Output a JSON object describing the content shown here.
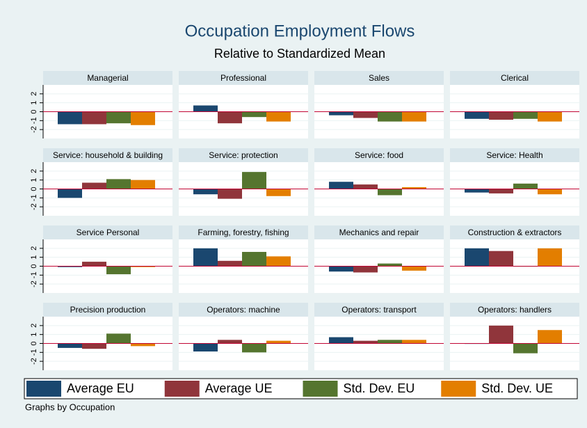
{
  "chart_data": {
    "type": "bar",
    "title": "Occupation Employment Flows",
    "subtitle": "Relative to Standardized Mean",
    "note": "Graphs by Occupation",
    "categories": [
      "Managerial",
      "Professional",
      "Sales",
      "Clerical",
      "Service: household & building",
      "Service: protection",
      "Service: food",
      "Service: Health",
      "Service Personal",
      "Farming, forestry, fishing",
      "Mechanics and repair",
      "Construction & extractors",
      "Precision production",
      "Operators: machine",
      "Operators: transport",
      "Operators: handlers"
    ],
    "series": [
      {
        "name": "Average EU",
        "color": "#1a476f",
        "values": [
          -1.4,
          0.7,
          -0.4,
          -0.8,
          -1.0,
          -0.6,
          0.8,
          -0.4,
          -0.1,
          2.0,
          -0.6,
          2.0,
          -0.5,
          -0.9,
          0.7,
          -0.05
        ]
      },
      {
        "name": "Average UE",
        "color": "#90353b",
        "values": [
          -1.4,
          -1.3,
          -0.7,
          -0.9,
          0.7,
          -1.1,
          0.5,
          -0.5,
          0.5,
          0.6,
          -0.7,
          1.7,
          -0.6,
          0.4,
          0.3,
          2.0
        ]
      },
      {
        "name": "Std. Dev. EU",
        "color": "#55752f",
        "values": [
          -1.3,
          -0.6,
          -1.1,
          -0.8,
          1.1,
          1.9,
          -0.7,
          0.6,
          -0.9,
          1.6,
          0.3,
          -0.05,
          1.1,
          -1.0,
          0.4,
          -1.1
        ]
      },
      {
        "name": "Std. Dev. UE",
        "color": "#e37e00",
        "values": [
          -1.5,
          -1.1,
          -1.1,
          -1.1,
          1.0,
          -0.8,
          0.2,
          -0.6,
          -0.1,
          1.1,
          -0.5,
          2.0,
          -0.3,
          0.3,
          0.4,
          1.5
        ]
      }
    ],
    "ylim": [
      -3,
      3
    ],
    "yticks": [
      -2,
      -1,
      0,
      1,
      2
    ],
    "grid": true,
    "zero_line_color": "#c10534"
  }
}
